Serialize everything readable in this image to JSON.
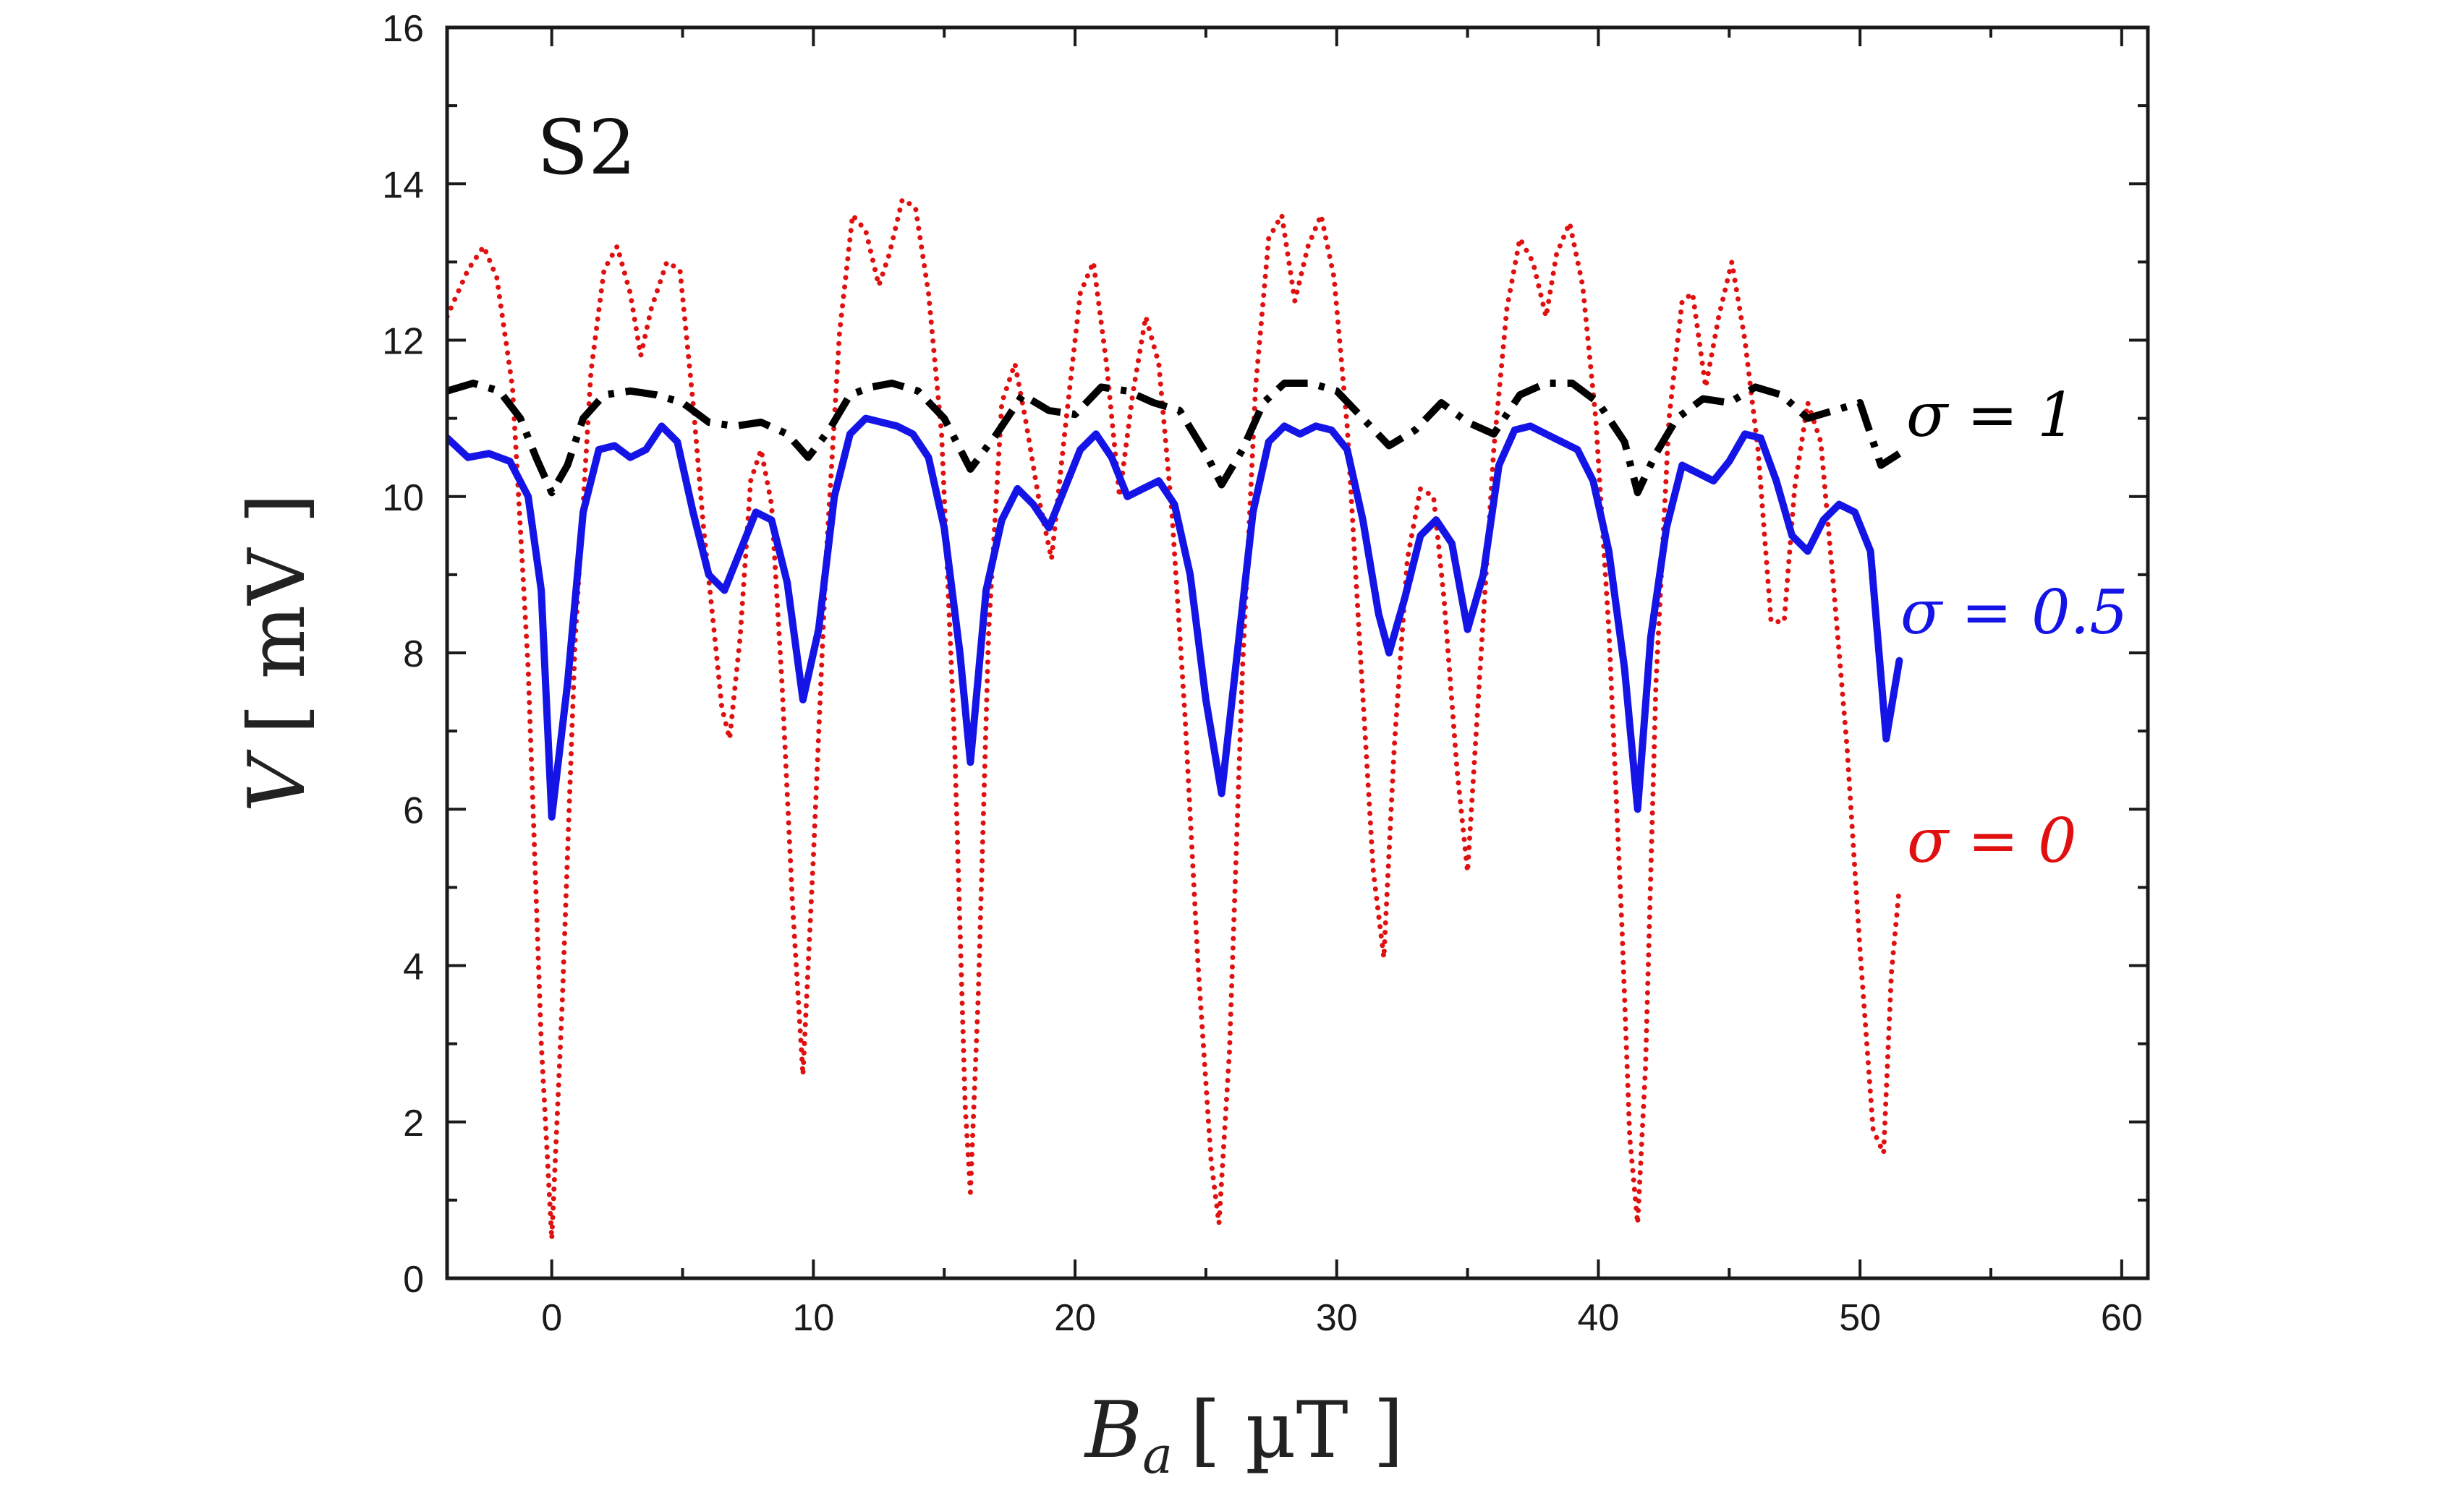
{
  "chart_data": {
    "type": "line",
    "panel_label": "S2",
    "xlabel": "B_a [ µT ]",
    "xlabel_main": "B",
    "xlabel_sub": "a",
    "xlabel_units": "[ µT ]",
    "ylabel": "V [ mV ]",
    "ylabel_main": "V",
    "ylabel_units": "[ mV ]",
    "xlim": [
      -4,
      61
    ],
    "ylim": [
      0,
      16
    ],
    "xticks": [
      0,
      10,
      20,
      30,
      40,
      50,
      60
    ],
    "yticks": [
      0,
      2,
      4,
      6,
      8,
      10,
      12,
      14,
      16
    ],
    "grid": false,
    "series": [
      {
        "name": "σ = 0",
        "label": "σ = 0",
        "color": "#e01010",
        "style": "dotted",
        "x": [
          -4,
          -3.2,
          -2.6,
          -2.1,
          -1.5,
          -0.9,
          -0.4,
          0.0,
          0.4,
          0.9,
          1.5,
          2.0,
          2.5,
          3.0,
          3.4,
          3.8,
          4.4,
          4.9,
          5.4,
          5.8,
          6.2,
          6.5,
          6.8,
          7.2,
          7.6,
          8.0,
          8.4,
          8.8,
          9.2,
          9.6,
          10.0,
          10.5,
          11.0,
          11.5,
          12.0,
          12.5,
          12.9,
          13.4,
          13.9,
          14.4,
          14.9,
          15.4,
          15.8,
          16.0,
          16.3,
          16.7,
          17.2,
          17.7,
          18.1,
          18.6,
          19.1,
          19.6,
          20.2,
          20.7,
          21.2,
          21.7,
          22.2,
          22.7,
          23.2,
          23.7,
          24.2,
          24.7,
          25.2,
          25.5,
          25.9,
          26.4,
          26.9,
          27.4,
          27.9,
          28.4,
          28.9,
          29.4,
          29.9,
          30.4,
          30.9,
          31.4,
          31.8,
          32.2,
          32.7,
          33.2,
          33.7,
          34.1,
          34.6,
          35.0,
          35.5,
          36.0,
          36.5,
          37.0,
          37.5,
          38.0,
          38.4,
          38.9,
          39.4,
          39.9,
          40.4,
          40.9,
          41.2,
          41.5,
          41.8,
          42.2,
          42.7,
          43.2,
          43.6,
          44.1,
          44.6,
          45.1,
          45.6,
          46.1,
          46.6,
          47.1,
          47.5,
          48.0,
          48.5,
          49.0,
          49.5,
          50.0,
          50.5,
          50.9,
          51.2,
          51.5
        ],
        "values": [
          12.3,
          12.9,
          13.2,
          12.8,
          11.4,
          7.8,
          3.0,
          0.5,
          3.5,
          8.2,
          11.6,
          12.9,
          13.2,
          12.6,
          11.8,
          12.4,
          13.0,
          12.9,
          11.2,
          9.6,
          8.3,
          7.3,
          6.9,
          8.2,
          10.2,
          10.6,
          9.9,
          7.6,
          4.8,
          2.6,
          5.4,
          9.3,
          12.1,
          13.6,
          13.4,
          12.7,
          13.1,
          13.8,
          13.7,
          12.6,
          10.8,
          6.8,
          2.2,
          1.1,
          3.6,
          8.3,
          11.2,
          11.7,
          11.0,
          10.0,
          9.2,
          10.8,
          12.6,
          13.0,
          11.7,
          10.0,
          11.3,
          12.3,
          11.7,
          9.8,
          7.2,
          4.0,
          1.5,
          0.7,
          2.9,
          7.8,
          11.4,
          13.3,
          13.6,
          12.5,
          13.2,
          13.6,
          12.8,
          10.9,
          8.0,
          5.2,
          4.1,
          6.8,
          9.2,
          10.1,
          10.0,
          8.7,
          6.5,
          5.2,
          7.9,
          10.6,
          12.4,
          13.3,
          13.0,
          12.3,
          13.1,
          13.5,
          12.7,
          11.0,
          8.3,
          4.5,
          1.8,
          0.7,
          2.7,
          7.6,
          11.0,
          12.5,
          12.6,
          11.4,
          12.3,
          13.0,
          12.0,
          10.6,
          8.4,
          8.4,
          10.1,
          11.2,
          10.7,
          8.8,
          6.8,
          4.2,
          1.9,
          1.6,
          3.9,
          5.0
        ]
      },
      {
        "name": "σ = 0.5",
        "label": "σ = 0.5",
        "color": "#1414e6",
        "style": "solid",
        "x": [
          -4,
          -3.2,
          -2.4,
          -1.6,
          -0.9,
          -0.4,
          0.0,
          0.6,
          1.2,
          1.8,
          2.4,
          3.0,
          3.6,
          4.2,
          4.8,
          5.4,
          6.0,
          6.6,
          7.2,
          7.8,
          8.4,
          9.0,
          9.6,
          10.2,
          10.8,
          11.4,
          12.0,
          12.6,
          13.2,
          13.8,
          14.4,
          15.0,
          15.6,
          16.0,
          16.6,
          17.2,
          17.8,
          18.4,
          19.0,
          19.6,
          20.2,
          20.8,
          21.4,
          22.0,
          22.6,
          23.2,
          23.8,
          24.4,
          25.0,
          25.6,
          26.2,
          26.8,
          27.4,
          28.0,
          28.6,
          29.2,
          29.8,
          30.4,
          31.0,
          31.6,
          32.0,
          32.6,
          33.2,
          33.8,
          34.4,
          35.0,
          35.6,
          36.2,
          36.8,
          37.4,
          38.0,
          38.6,
          39.2,
          39.8,
          40.4,
          41.0,
          41.5,
          42.0,
          42.6,
          43.2,
          43.8,
          44.4,
          45.0,
          45.6,
          46.2,
          46.8,
          47.4,
          48.0,
          48.6,
          49.2,
          49.8,
          50.4,
          51.0,
          51.5
        ],
        "values": [
          10.75,
          10.5,
          10.55,
          10.45,
          10.0,
          8.8,
          5.9,
          7.6,
          9.8,
          10.6,
          10.65,
          10.5,
          10.6,
          10.9,
          10.7,
          9.8,
          9.0,
          8.8,
          9.3,
          9.8,
          9.7,
          8.9,
          7.4,
          8.3,
          10.0,
          10.8,
          11.0,
          10.95,
          10.9,
          10.8,
          10.5,
          9.6,
          8.0,
          6.6,
          8.8,
          9.7,
          10.1,
          9.9,
          9.6,
          10.1,
          10.6,
          10.8,
          10.5,
          10.0,
          10.1,
          10.2,
          9.9,
          9.0,
          7.4,
          6.2,
          8.0,
          9.8,
          10.7,
          10.9,
          10.8,
          10.9,
          10.85,
          10.6,
          9.7,
          8.5,
          8.0,
          8.7,
          9.5,
          9.7,
          9.4,
          8.3,
          9.0,
          10.4,
          10.85,
          10.9,
          10.8,
          10.7,
          10.6,
          10.2,
          9.3,
          7.8,
          6.0,
          8.2,
          9.6,
          10.4,
          10.3,
          10.2,
          10.45,
          10.8,
          10.75,
          10.2,
          9.5,
          9.3,
          9.7,
          9.9,
          9.8,
          9.3,
          6.9,
          7.9
        ]
      },
      {
        "name": "σ = 1",
        "label": "σ = 1",
        "color": "#000000",
        "style": "dashdot",
        "x": [
          -4,
          -3.0,
          -2.0,
          -1.2,
          -0.6,
          0.0,
          0.6,
          1.2,
          2.0,
          3.0,
          4.0,
          5.0,
          6.0,
          7.0,
          8.0,
          9.0,
          9.8,
          10.6,
          11.4,
          12.2,
          13.0,
          14.0,
          15.0,
          16.0,
          17.0,
          18.0,
          19.0,
          20.0,
          21.0,
          22.0,
          23.0,
          24.0,
          25.0,
          25.6,
          26.4,
          27.2,
          28.0,
          29.0,
          30.0,
          31.0,
          32.0,
          33.0,
          34.0,
          35.0,
          36.0,
          37.0,
          38.0,
          39.0,
          40.0,
          41.0,
          41.5,
          42.2,
          43.0,
          44.0,
          45.0,
          46.0,
          47.0,
          48.0,
          49.0,
          50.0,
          50.8,
          51.5
        ],
        "values": [
          11.35,
          11.45,
          11.35,
          11.0,
          10.5,
          10.05,
          10.4,
          11.0,
          11.3,
          11.35,
          11.3,
          11.2,
          10.95,
          10.9,
          10.95,
          10.8,
          10.5,
          10.85,
          11.3,
          11.4,
          11.45,
          11.35,
          11.0,
          10.35,
          10.8,
          11.3,
          11.1,
          11.05,
          11.4,
          11.35,
          11.2,
          11.1,
          10.55,
          10.15,
          10.6,
          11.2,
          11.45,
          11.45,
          11.35,
          11.0,
          10.65,
          10.85,
          11.2,
          10.95,
          10.8,
          11.3,
          11.45,
          11.45,
          11.2,
          10.7,
          10.05,
          10.55,
          11.0,
          11.25,
          11.2,
          11.4,
          11.3,
          11.0,
          11.1,
          11.2,
          10.4,
          10.55
        ]
      }
    ]
  }
}
